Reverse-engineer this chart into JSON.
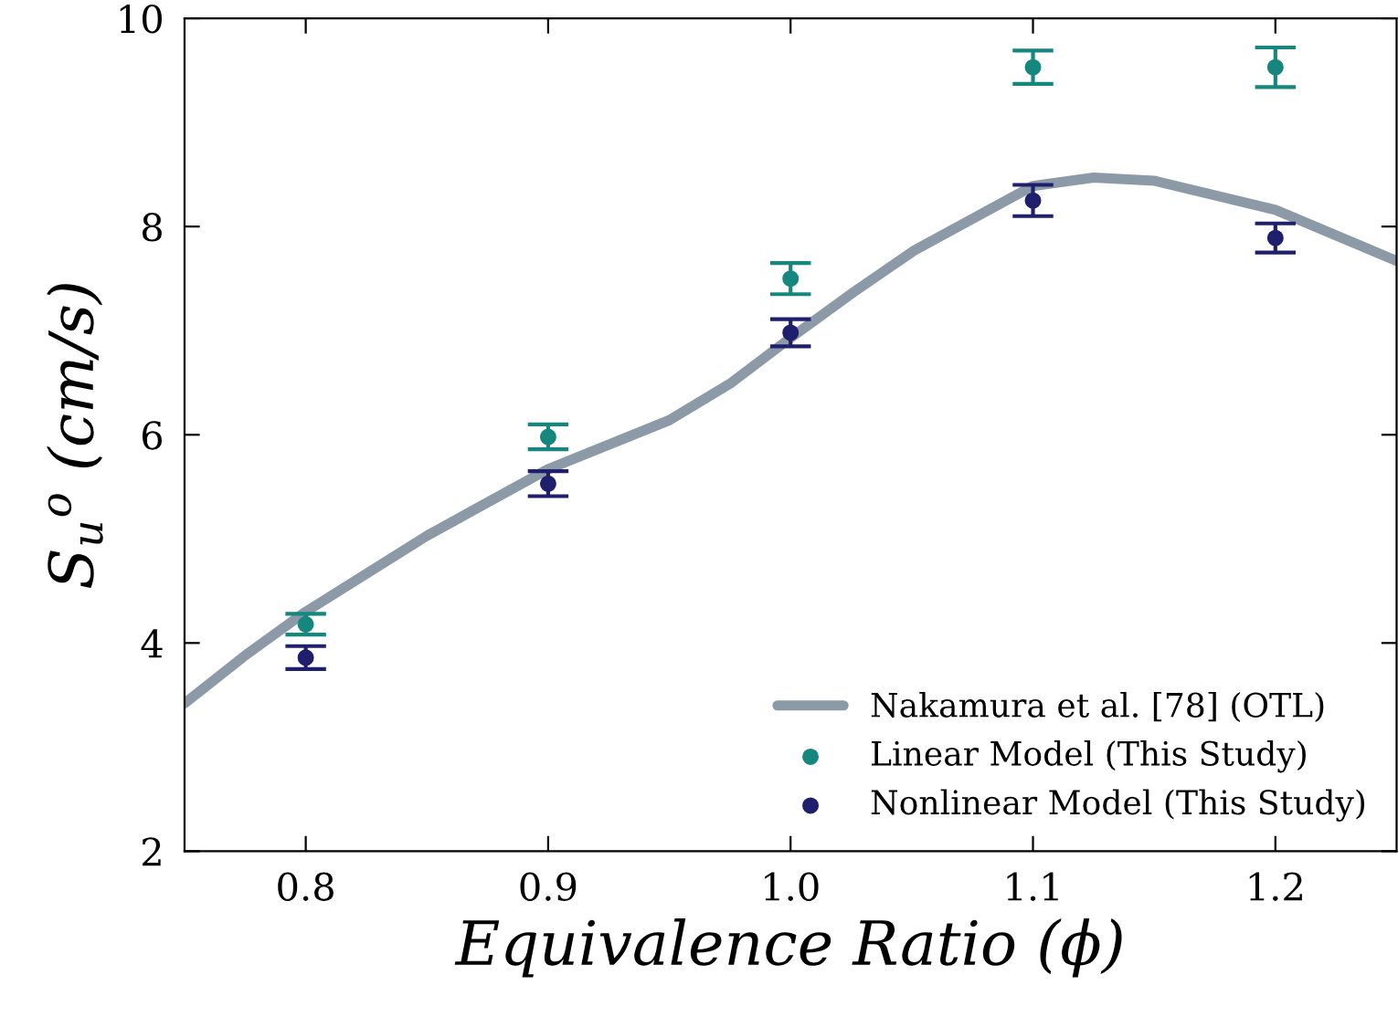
{
  "chart_data": {
    "type": "scatter",
    "xlabel": "Equivalence Ratio (ϕ)",
    "ylabel": "S$_{u}$$^{o}$ (cm/s)",
    "xlim": [
      0.75,
      1.25
    ],
    "ylim": [
      2,
      10
    ],
    "xticks": [
      {
        "value": 0.8,
        "label": "0.8"
      },
      {
        "value": 0.9,
        "label": "0.9"
      },
      {
        "value": 1.0,
        "label": "1.0"
      },
      {
        "value": 1.1,
        "label": "1.1"
      },
      {
        "value": 1.2,
        "label": "1.2"
      }
    ],
    "yticks": [
      2,
      4,
      6,
      8,
      10
    ],
    "grid": false,
    "legend": "bottom right",
    "series": [
      {
        "name": "Nakamura et al. [78] (OTL)",
        "type": "line",
        "color": "#8c9aa8",
        "line_style": "solid",
        "marker": "none",
        "x": [
          0.75,
          0.775,
          0.8,
          0.85,
          0.9,
          0.95,
          0.975,
          1.0,
          1.026,
          1.051,
          1.1,
          1.125,
          1.15,
          1.2,
          1.25
        ],
        "values": [
          3.42,
          3.88,
          4.3,
          5.03,
          5.67,
          6.14,
          6.49,
          6.93,
          7.37,
          7.77,
          8.39,
          8.47,
          8.44,
          8.16,
          7.67
        ]
      },
      {
        "name": "Linear Model (This Study)",
        "marker": "circle",
        "color": "#16877f",
        "x": [
          0.8,
          0.9,
          1.0,
          1.1,
          1.2
        ],
        "values": [
          4.18,
          5.98,
          7.5,
          9.53,
          9.53
        ],
        "errors": [
          0.1,
          0.12,
          0.15,
          0.16,
          0.19
        ]
      },
      {
        "name": "Nonlinear Model (This Study)",
        "marker": "circle",
        "color": "#1f1f6e",
        "x": [
          0.8,
          0.9,
          1.0,
          1.1,
          1.2
        ],
        "values": [
          3.86,
          5.53,
          6.98,
          8.25,
          7.89
        ],
        "errors": [
          0.11,
          0.12,
          0.13,
          0.15,
          0.14
        ]
      }
    ]
  }
}
